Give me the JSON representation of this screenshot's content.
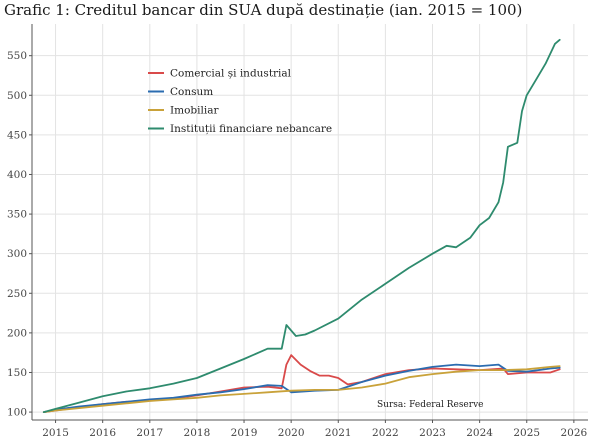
{
  "title": "Grafic 1: Creditul bancar din SUA după destinație (ian. 2015 = 100)",
  "chart_data": {
    "type": "line",
    "title": "Grafic 1: Creditul bancar din SUA după destinație (ian. 2015 = 100)",
    "xlabel": "",
    "ylabel": "",
    "xlim": [
      2014.5,
      2026.3
    ],
    "ylim": [
      90,
      590
    ],
    "x_ticks": [
      2015,
      2016,
      2017,
      2018,
      2019,
      2020,
      2021,
      2022,
      2023,
      2024,
      2025,
      2026
    ],
    "y_ticks": [
      100,
      150,
      200,
      250,
      300,
      350,
      400,
      450,
      500,
      550
    ],
    "grid": true,
    "legend_position": "top-left",
    "source": "Sursa: Federal Reserve",
    "series": [
      {
        "name": "Comercial și industrial",
        "color": "#d94a4a",
        "x": [
          2014.75,
          2015,
          2015.5,
          2016,
          2016.5,
          2017,
          2017.5,
          2018,
          2018.5,
          2019,
          2019.5,
          2019.8,
          2019.9,
          2020.0,
          2020.2,
          2020.4,
          2020.6,
          2020.8,
          2021,
          2021.2,
          2021.5,
          2022,
          2022.5,
          2023,
          2023.5,
          2024,
          2024.5,
          2024.6,
          2025,
          2025.5,
          2025.7
        ],
        "y": [
          100,
          102,
          106,
          110,
          113,
          115,
          117,
          121,
          126,
          131,
          132,
          130,
          160,
          172,
          160,
          152,
          146,
          146,
          143,
          135,
          138,
          148,
          153,
          155,
          154,
          153,
          155,
          148,
          150,
          150,
          154
        ]
      },
      {
        "name": "Consum",
        "color": "#2b6cb0",
        "x": [
          2014.75,
          2015,
          2015.5,
          2016,
          2016.5,
          2017,
          2017.5,
          2018,
          2018.5,
          2019,
          2019.5,
          2019.8,
          2020.0,
          2020.5,
          2021,
          2021.5,
          2022,
          2022.5,
          2023,
          2023.5,
          2024,
          2024.4,
          2024.6,
          2025,
          2025.5,
          2025.7
        ],
        "y": [
          100,
          103,
          107,
          110,
          113,
          116,
          118,
          122,
          125,
          129,
          134,
          133,
          125,
          127,
          128,
          138,
          146,
          152,
          157,
          160,
          158,
          160,
          152,
          151,
          155,
          156
        ]
      },
      {
        "name": "Imobiliar",
        "color": "#c9a23a",
        "x": [
          2014.75,
          2015,
          2015.5,
          2016,
          2016.5,
          2017,
          2017.5,
          2018,
          2018.5,
          2019,
          2019.5,
          2020,
          2020.5,
          2021,
          2021.5,
          2022,
          2022.5,
          2023,
          2023.5,
          2024,
          2024.5,
          2025,
          2025.5,
          2025.7
        ],
        "y": [
          100,
          102,
          105,
          108,
          111,
          114,
          116,
          118,
          121,
          123,
          125,
          127,
          128,
          128,
          131,
          136,
          144,
          148,
          151,
          153,
          153,
          154,
          157,
          158
        ]
      },
      {
        "name": "Instituții financiare nebancare",
        "color": "#2e8b6e",
        "x": [
          2014.75,
          2015,
          2015.5,
          2016,
          2016.5,
          2017,
          2017.5,
          2018,
          2018.5,
          2019,
          2019.5,
          2019.8,
          2019.9,
          2020.1,
          2020.3,
          2020.5,
          2021,
          2021.5,
          2022,
          2022.5,
          2023,
          2023.3,
          2023.5,
          2023.8,
          2024,
          2024.2,
          2024.4,
          2024.5,
          2024.6,
          2024.8,
          2024.9,
          2025.0,
          2025.2,
          2025.4,
          2025.6,
          2025.7
        ],
        "y": [
          100,
          104,
          112,
          120,
          126,
          130,
          136,
          143,
          155,
          167,
          180,
          180,
          210,
          196,
          198,
          203,
          218,
          242,
          262,
          282,
          300,
          310,
          308,
          320,
          336,
          345,
          365,
          390,
          435,
          440,
          480,
          500,
          520,
          540,
          565,
          570
        ]
      }
    ]
  }
}
